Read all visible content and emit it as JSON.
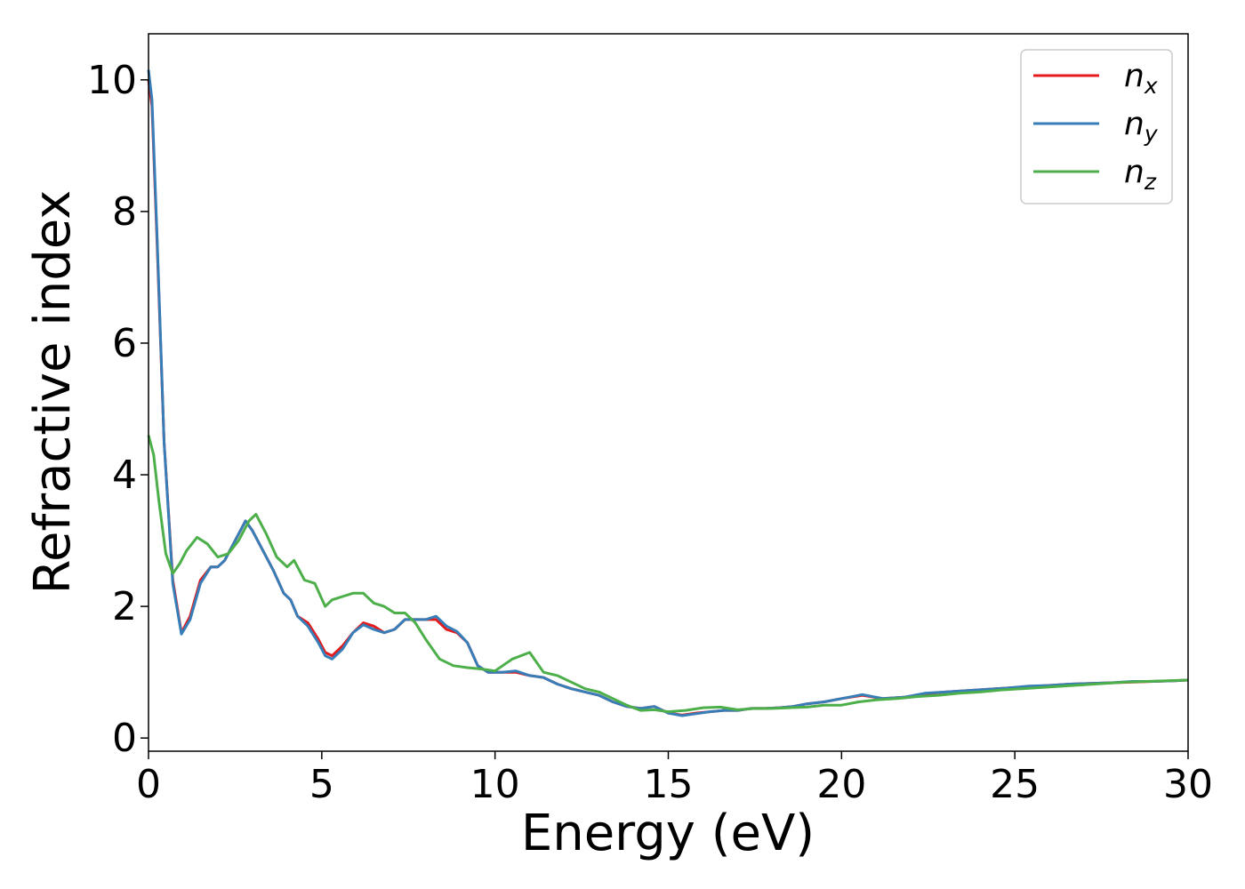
{
  "chart_data": {
    "type": "line",
    "title": "",
    "xlabel": "Energy (eV)",
    "ylabel": "Refractive index",
    "xlim": [
      0,
      30
    ],
    "ylim": [
      -0.2,
      10.7
    ],
    "xticks": [
      0,
      5,
      10,
      15,
      20,
      25,
      30
    ],
    "yticks": [
      0,
      2,
      4,
      6,
      8,
      10
    ],
    "grid": false,
    "legend_position": "top-right",
    "series": [
      {
        "name": "n_x",
        "legend_base": "n",
        "legend_sub": "x",
        "color": "#e41a1c",
        "x": [
          0,
          0.1,
          0.25,
          0.45,
          0.7,
          0.95,
          1.2,
          1.5,
          1.8,
          2.0,
          2.2,
          2.5,
          2.8,
          3.0,
          3.3,
          3.6,
          3.9,
          4.1,
          4.3,
          4.6,
          4.9,
          5.1,
          5.3,
          5.6,
          5.9,
          6.2,
          6.5,
          6.8,
          7.1,
          7.4,
          7.7,
          8.0,
          8.3,
          8.6,
          8.9,
          9.2,
          9.5,
          9.8,
          10.2,
          10.6,
          11.0,
          11.4,
          11.8,
          12.2,
          12.6,
          13.0,
          13.4,
          13.8,
          14.2,
          14.6,
          15.0,
          15.4,
          15.8,
          16.2,
          16.6,
          17.0,
          17.4,
          17.8,
          18.2,
          18.6,
          19.0,
          19.5,
          20.0,
          20.6,
          21.2,
          21.8,
          22.4,
          23.0,
          23.6,
          24.2,
          24.8,
          25.4,
          26.0,
          26.6,
          27.2,
          27.8,
          28.4,
          29.0,
          29.6,
          30.0
        ],
        "y": [
          10.0,
          9.6,
          7.5,
          4.5,
          2.4,
          1.6,
          1.85,
          2.4,
          2.6,
          2.6,
          2.7,
          3.0,
          3.3,
          3.15,
          2.85,
          2.55,
          2.2,
          2.1,
          1.85,
          1.75,
          1.5,
          1.3,
          1.25,
          1.4,
          1.6,
          1.75,
          1.7,
          1.6,
          1.65,
          1.8,
          1.8,
          1.8,
          1.8,
          1.65,
          1.6,
          1.45,
          1.1,
          1.0,
          1.0,
          1.0,
          0.95,
          0.92,
          0.82,
          0.75,
          0.7,
          0.65,
          0.55,
          0.48,
          0.45,
          0.48,
          0.38,
          0.35,
          0.38,
          0.4,
          0.42,
          0.42,
          0.45,
          0.45,
          0.46,
          0.48,
          0.52,
          0.55,
          0.6,
          0.65,
          0.6,
          0.62,
          0.67,
          0.7,
          0.72,
          0.74,
          0.76,
          0.78,
          0.8,
          0.82,
          0.83,
          0.84,
          0.85,
          0.86,
          0.87,
          0.88
        ]
      },
      {
        "name": "n_y",
        "legend_base": "n",
        "legend_sub": "y",
        "color": "#377eb8",
        "x": [
          0,
          0.1,
          0.25,
          0.45,
          0.7,
          0.95,
          1.2,
          1.5,
          1.8,
          2.0,
          2.2,
          2.5,
          2.8,
          3.0,
          3.3,
          3.6,
          3.9,
          4.1,
          4.3,
          4.6,
          4.9,
          5.1,
          5.3,
          5.6,
          5.9,
          6.2,
          6.5,
          6.8,
          7.1,
          7.4,
          7.7,
          8.0,
          8.3,
          8.6,
          8.9,
          9.2,
          9.5,
          9.8,
          10.2,
          10.6,
          11.0,
          11.4,
          11.8,
          12.2,
          12.6,
          13.0,
          13.4,
          13.8,
          14.2,
          14.6,
          15.0,
          15.4,
          15.8,
          16.2,
          16.6,
          17.0,
          17.4,
          17.8,
          18.2,
          18.6,
          19.0,
          19.5,
          20.0,
          20.6,
          21.2,
          21.8,
          22.4,
          23.0,
          23.6,
          24.2,
          24.8,
          25.4,
          26.0,
          26.6,
          27.2,
          27.8,
          28.4,
          29.0,
          29.6,
          30.0
        ],
        "y": [
          10.15,
          9.7,
          7.6,
          4.5,
          2.35,
          1.58,
          1.8,
          2.35,
          2.6,
          2.6,
          2.7,
          3.0,
          3.3,
          3.15,
          2.85,
          2.55,
          2.2,
          2.1,
          1.85,
          1.7,
          1.45,
          1.25,
          1.2,
          1.35,
          1.6,
          1.72,
          1.65,
          1.6,
          1.65,
          1.8,
          1.8,
          1.8,
          1.85,
          1.7,
          1.62,
          1.45,
          1.1,
          1.0,
          1.0,
          1.02,
          0.95,
          0.92,
          0.82,
          0.75,
          0.7,
          0.65,
          0.55,
          0.48,
          0.45,
          0.48,
          0.38,
          0.34,
          0.37,
          0.4,
          0.42,
          0.42,
          0.45,
          0.45,
          0.46,
          0.48,
          0.52,
          0.55,
          0.6,
          0.66,
          0.6,
          0.62,
          0.68,
          0.7,
          0.72,
          0.74,
          0.76,
          0.79,
          0.8,
          0.82,
          0.83,
          0.84,
          0.86,
          0.86,
          0.87,
          0.88
        ]
      },
      {
        "name": "n_z",
        "legend_base": "n",
        "legend_sub": "z",
        "color": "#4daf4a",
        "x": [
          0,
          0.15,
          0.3,
          0.5,
          0.7,
          0.9,
          1.1,
          1.4,
          1.7,
          2.0,
          2.3,
          2.6,
          2.9,
          3.1,
          3.4,
          3.7,
          4.0,
          4.2,
          4.5,
          4.8,
          5.1,
          5.3,
          5.6,
          5.9,
          6.2,
          6.5,
          6.8,
          7.1,
          7.4,
          7.7,
          8.0,
          8.4,
          8.8,
          9.2,
          9.6,
          10.0,
          10.5,
          11.0,
          11.4,
          11.8,
          12.2,
          12.6,
          13.0,
          13.4,
          13.8,
          14.2,
          14.6,
          15.0,
          15.5,
          16.0,
          16.5,
          17.0,
          17.5,
          18.0,
          18.5,
          19.0,
          19.5,
          20.0,
          20.5,
          21.0,
          21.6,
          22.2,
          22.8,
          23.4,
          24.0,
          24.6,
          25.2,
          25.8,
          26.4,
          27.0,
          27.6,
          28.2,
          28.8,
          29.4,
          30.0
        ],
        "y": [
          4.6,
          4.3,
          3.6,
          2.8,
          2.5,
          2.65,
          2.85,
          3.05,
          2.95,
          2.75,
          2.8,
          3.0,
          3.3,
          3.4,
          3.1,
          2.75,
          2.6,
          2.7,
          2.4,
          2.35,
          2.0,
          2.1,
          2.15,
          2.2,
          2.2,
          2.05,
          2.0,
          1.9,
          1.9,
          1.75,
          1.5,
          1.2,
          1.1,
          1.07,
          1.05,
          1.02,
          1.2,
          1.3,
          1.0,
          0.95,
          0.85,
          0.75,
          0.7,
          0.6,
          0.5,
          0.42,
          0.43,
          0.4,
          0.42,
          0.46,
          0.47,
          0.43,
          0.45,
          0.45,
          0.46,
          0.47,
          0.5,
          0.5,
          0.55,
          0.58,
          0.6,
          0.63,
          0.65,
          0.68,
          0.7,
          0.73,
          0.75,
          0.77,
          0.79,
          0.81,
          0.83,
          0.85,
          0.86,
          0.87,
          0.88
        ]
      }
    ]
  }
}
